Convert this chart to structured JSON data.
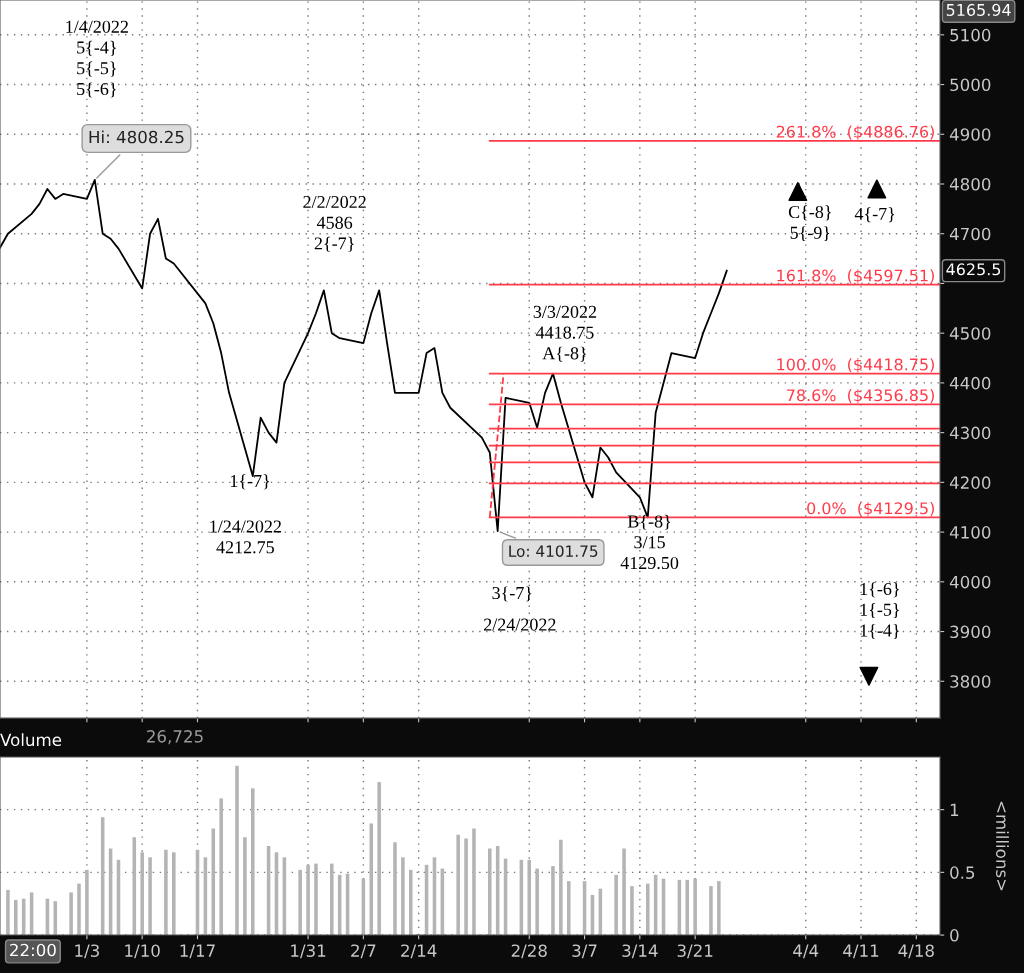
{
  "chart_data": [
    {
      "type": "line",
      "xlim": [
        "2021-12-23",
        "2022-04-21"
      ],
      "ylim": [
        3726,
        5170
      ],
      "yticks": [
        3800,
        3900,
        4000,
        4100,
        4200,
        4300,
        4400,
        4500,
        {
          "value": 4600,
          "label": null
        },
        4700,
        4800,
        4900,
        5000,
        5100
      ],
      "xticks": [
        {
          "value": "2022-01-03",
          "label": null
        },
        {
          "value": "2022-01-10",
          "label": null
        },
        {
          "value": "2022-01-17",
          "label": null
        },
        {
          "value": "2022-01-31",
          "label": null
        },
        {
          "value": "2022-02-07",
          "label": null
        },
        {
          "value": "2022-02-14",
          "label": null
        },
        {
          "value": "2022-02-28",
          "label": null
        },
        {
          "value": "2022-03-07",
          "label": null
        },
        {
          "value": "2022-03-14",
          "label": null
        },
        {
          "value": "2022-03-21",
          "label": null
        },
        {
          "value": "2022-04-04",
          "label": null
        },
        {
          "value": "2022-04-11",
          "label": null
        },
        {
          "value": "2022-04-18",
          "label": null
        }
      ],
      "tick_labels": "y",
      "grid": true,
      "legend": false,
      "series": [
        {
          "color": "#000000",
          "x": [
            "2021-12-23",
            "2021-12-24",
            "2021-12-27",
            "2021-12-28",
            "2021-12-29",
            "2021-12-30",
            "2021-12-31",
            "2022-01-03",
            "2022-01-04",
            "2022-01-05",
            "2022-01-06",
            "2022-01-07",
            "2022-01-10",
            "2022-01-11",
            "2022-01-12",
            "2022-01-13",
            "2022-01-14",
            "2022-01-18",
            "2022-01-19",
            "2022-01-20",
            "2022-01-21",
            "2022-01-24",
            "2022-01-25",
            "2022-01-26",
            "2022-01-27",
            "2022-01-28",
            "2022-01-31",
            "2022-02-01",
            "2022-02-02",
            "2022-02-03",
            "2022-02-04",
            "2022-02-07",
            "2022-02-08",
            "2022-02-09",
            "2022-02-10",
            "2022-02-11",
            "2022-02-14",
            "2022-02-15",
            "2022-02-16",
            "2022-02-17",
            "2022-02-18",
            "2022-02-22",
            "2022-02-23",
            "2022-02-24",
            "2022-02-25",
            "2022-02-28",
            "2022-03-01",
            "2022-03-02",
            "2022-03-03",
            "2022-03-04",
            "2022-03-07",
            "2022-03-08",
            "2022-03-09",
            "2022-03-10",
            "2022-03-11",
            "2022-03-14",
            "2022-03-15",
            "2022-03-16",
            "2022-03-17",
            "2022-03-18",
            "2022-03-21",
            "2022-03-22",
            "2022-03-23",
            "2022-03-24",
            "2022-03-25"
          ],
          "values": [
            4672,
            4700,
            4740,
            4760,
            4790,
            4770,
            4780,
            4770,
            4808.25,
            4700,
            4690,
            4670,
            4590,
            4700,
            4730,
            4650,
            4640,
            4560,
            4520,
            4460,
            4380,
            4212.75,
            4330,
            4300,
            4280,
            4400,
            4500,
            4540,
            4586,
            4500,
            4490,
            4480,
            4540,
            4586,
            4480,
            4380,
            4380,
            4460,
            4470,
            4380,
            4350,
            4290,
            4260,
            4101.75,
            4370,
            4360,
            4310,
            4380,
            4418.75,
            4360,
            4200,
            4170,
            4270,
            4250,
            4220,
            4170,
            4129.5,
            4340,
            4400,
            4460,
            4450,
            4500,
            4540,
            4580,
            4625.5
          ]
        },
        {
          "name": "261.8%  ($4886.76)",
          "color": "#ff3b4a",
          "x": [
            "2022-02-23",
            "2022-04-21"
          ],
          "values": [
            4886.76,
            4886.76
          ]
        },
        {
          "name": "161.8%  ($4597.51)",
          "color": "#ff3b4a",
          "x": [
            "2022-02-23",
            "2022-04-21"
          ],
          "values": [
            4597.51,
            4597.51
          ]
        },
        {
          "name": "100.0%  ($4418.75)",
          "color": "#ff3b4a",
          "x": [
            "2022-02-23",
            "2022-04-21"
          ],
          "values": [
            4418.75,
            4418.75
          ]
        },
        {
          "name": "78.6%  ($4356.85)",
          "color": "#ff3b4a",
          "x": [
            "2022-02-23",
            "2022-04-21"
          ],
          "values": [
            4356.85,
            4356.85
          ]
        },
        {
          "color": "#ff3b4a",
          "x": [
            "2022-02-23",
            "2022-04-21"
          ],
          "values": [
            4308,
            4308
          ]
        },
        {
          "color": "#ff3b4a",
          "x": [
            "2022-02-23",
            "2022-04-21"
          ],
          "values": [
            4274,
            4274
          ]
        },
        {
          "color": "#ff3b4a",
          "x": [
            "2022-02-23",
            "2022-04-21"
          ],
          "values": [
            4240,
            4240
          ]
        },
        {
          "color": "#ff3b4a",
          "x": [
            "2022-02-23",
            "2022-04-21"
          ],
          "values": [
            4198,
            4198
          ]
        },
        {
          "name": "0.0%  ($4129.5)",
          "color": "#ff3b4a",
          "x": [
            "2022-02-23",
            "2022-04-21"
          ],
          "values": [
            4129.5,
            4129.5
          ]
        },
        {
          "color": "#ff3b4a",
          "line_style": "dashed",
          "x": [
            "2022-02-23",
            "2022-02-24T18:00"
          ],
          "values": [
            4129.5,
            4418.75
          ]
        },
        {
          "type": "scatter",
          "marker": "triangle",
          "color": "#000000",
          "x": [
            "2022-04-03",
            "2022-04-13"
          ],
          "values": [
            4785,
            4790
          ]
        },
        {
          "type": "scatter",
          "marker": "triangle_down",
          "color": "#000000",
          "x": [
            "2022-04-12"
          ],
          "values": [
            3810
          ]
        }
      ],
      "annotations": [
        "1/4/2022\n5{-4}\n5{-5}\n5{-6}",
        "2/2/2022\n4586\n2{-7}",
        "1{-7}",
        "1/24/2022\n4212.75",
        "3/3/2022\n4418.75\nA{-8}",
        "B{-8}\n3/15\n4129.50",
        "3{-7}",
        "2/24/2022",
        "C{-8}\n5{-9}",
        "4{-7}",
        "1{-6}\n1{-5}\n1{-4}",
        "5165.94",
        "4625.5",
        {
          "text": "Hi: 4808.25",
          "x": "2022-01-04",
          "y": 4808.25
        },
        {
          "text": "Lo: 4101.75",
          "x": "2022-02-24",
          "y": 4101.75
        }
      ]
    },
    {
      "type": "bar",
      "title": "Volume",
      "ylabel": "<millions>",
      "xlim": [
        "2021-12-23",
        "2022-04-21"
      ],
      "ylim": [
        0,
        1.42
      ],
      "yticks": [
        0,
        0.5,
        1
      ],
      "grid": true,
      "legend": false,
      "xticks": [
        {
          "value": "2022-01-03",
          "label": "1/3"
        },
        {
          "value": "2022-01-10",
          "label": "1/10"
        },
        {
          "value": "2022-01-17",
          "label": "1/17"
        },
        {
          "value": "2022-01-31",
          "label": "1/31"
        },
        {
          "value": "2022-02-07",
          "label": "2/7"
        },
        {
          "value": "2022-02-14",
          "label": "2/14"
        },
        {
          "value": "2022-02-28",
          "label": "2/28"
        },
        {
          "value": "2022-03-07",
          "label": "3/7"
        },
        {
          "value": "2022-03-14",
          "label": "3/14"
        },
        {
          "value": "2022-03-21",
          "label": "3/21"
        },
        {
          "value": "2022-04-04",
          "label": "4/4"
        },
        {
          "value": "2022-04-11",
          "label": "4/11"
        },
        {
          "value": "2022-04-18",
          "label": "4/18"
        }
      ],
      "x": [
        "2021-12-24",
        "2021-12-25",
        "2021-12-26",
        "2021-12-27",
        "2021-12-29",
        "2021-12-30",
        "2022-01-01",
        "2022-01-02",
        "2022-01-03",
        "2022-01-05",
        "2022-01-06",
        "2022-01-07",
        "2022-01-09",
        "2022-01-10",
        "2022-01-11",
        "2022-01-13",
        "2022-01-14",
        "2022-01-17",
        "2022-01-18",
        "2022-01-19",
        "2022-01-20",
        "2022-01-22",
        "2022-01-23",
        "2022-01-24",
        "2022-01-26",
        "2022-01-27",
        "2022-01-28",
        "2022-01-30",
        "2022-01-31",
        "2022-02-01",
        "2022-02-03",
        "2022-02-04",
        "2022-02-05",
        "2022-02-07",
        "2022-02-08",
        "2022-02-09",
        "2022-02-11",
        "2022-02-12",
        "2022-02-13",
        "2022-02-15",
        "2022-02-16",
        "2022-02-17",
        "2022-02-19",
        "2022-02-20",
        "2022-02-21",
        "2022-02-23",
        "2022-02-24",
        "2022-02-25",
        "2022-02-27",
        "2022-02-28",
        "2022-03-01",
        "2022-03-03",
        "2022-03-04",
        "2022-03-05",
        "2022-03-07",
        "2022-03-08",
        "2022-03-09",
        "2022-03-11",
        "2022-03-12",
        "2022-03-13",
        "2022-03-15",
        "2022-03-16",
        "2022-03-17",
        "2022-03-19",
        "2022-03-20",
        "2022-03-21",
        "2022-03-23",
        "2022-03-24"
      ],
      "series": [
        {
          "color": "#b4b4b4",
          "values": [
            0.36,
            0.28,
            0.29,
            0.34,
            0.29,
            0.27,
            0.34,
            0.41,
            0.52,
            0.94,
            0.69,
            0.6,
            0.78,
            0.66,
            0.62,
            0.68,
            0.66,
            0.68,
            0.62,
            0.85,
            1.09,
            1.35,
            0.78,
            1.17,
            0.71,
            0.66,
            0.62,
            0.52,
            0.56,
            0.57,
            0.57,
            0.48,
            0.49,
            0.45,
            0.89,
            1.22,
            0.74,
            0.62,
            0.52,
            0.56,
            0.62,
            0.53,
            0.8,
            0.77,
            0.85,
            0.69,
            0.71,
            0.61,
            0.6,
            0.6,
            0.53,
            0.55,
            0.76,
            0.43,
            0.43,
            0.32,
            0.37,
            0.48,
            0.69,
            0.39,
            0.41,
            0.48,
            0.45,
            0.44,
            0.44,
            0.45,
            0.39,
            0.43
          ]
        }
      ],
      "annotations": [
        "26,725",
        "22:00"
      ]
    }
  ]
}
